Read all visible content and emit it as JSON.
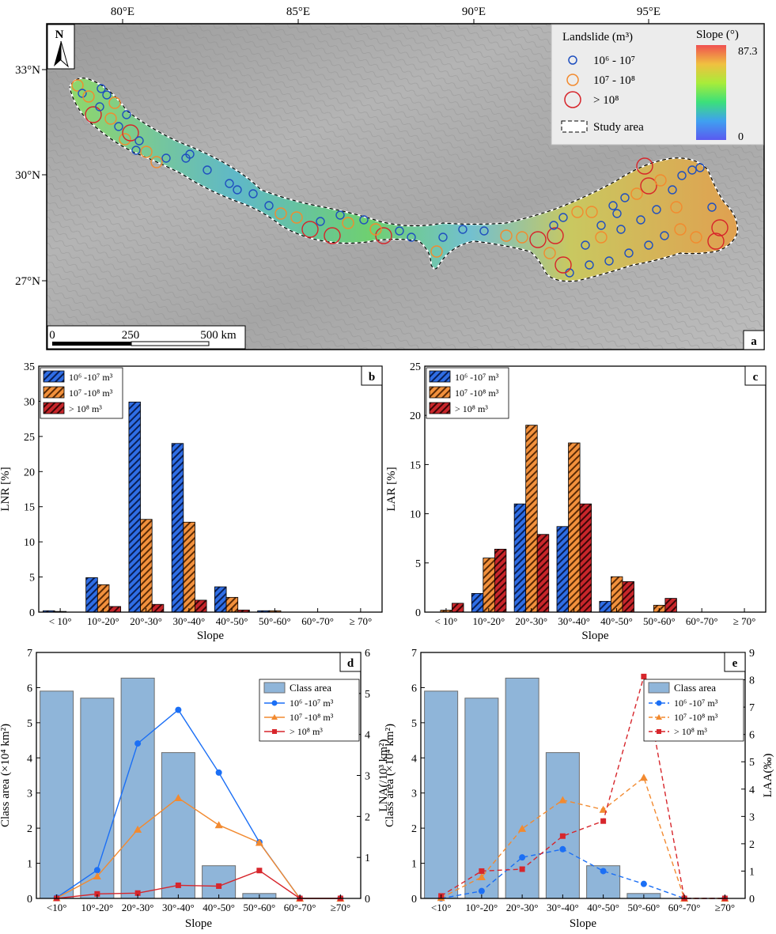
{
  "map": {
    "panel_letter": "a",
    "lon_ticks": [
      "80°E",
      "85°E",
      "90°E",
      "95°E"
    ],
    "lat_ticks": [
      "33°N",
      "30°N",
      "27°N"
    ],
    "north_label": "N",
    "scale_labels": [
      "0",
      "250",
      "500 km"
    ],
    "legend": {
      "landslide_title": "Landslide (m³)",
      "items": [
        "10⁶ - 10⁷",
        "10⁷ - 10⁸",
        "> 10⁸"
      ],
      "study_area": "Study area",
      "slope_title": "Slope (°)",
      "slope_max": "87.3",
      "slope_min": "0"
    },
    "colors": {
      "class1": "#1f4fbf",
      "class2": "#f28a2e",
      "class3": "#d7242a"
    }
  },
  "chart_data": [
    {
      "panel": "b",
      "type": "bar",
      "categories": [
        "< 10°",
        "10°-20°",
        "20°-30°",
        "30°-40°",
        "40°-50°",
        "50°-60°",
        "60°-70°",
        "≥ 70°"
      ],
      "series": [
        {
          "name": "10⁶ -10⁷ m³",
          "color": "#2f6ee6",
          "values": [
            0.2,
            4.9,
            29.9,
            24.0,
            3.6,
            0.2,
            0,
            0
          ]
        },
        {
          "name": "10⁷ -10⁸ m³",
          "color": "#f2913d",
          "values": [
            0.1,
            3.9,
            13.2,
            12.8,
            2.1,
            0.2,
            0,
            0
          ]
        },
        {
          "name": "> 10⁸ m³",
          "color": "#c8262b",
          "values": [
            0,
            0.8,
            1.1,
            1.7,
            0.3,
            0,
            0,
            0
          ]
        }
      ],
      "xlabel": "Slope",
      "ylabel": "LNR [%]",
      "ylim": [
        0,
        35
      ],
      "yticks": [
        "0",
        "5",
        "10",
        "15",
        "20",
        "25",
        "30",
        "35"
      ]
    },
    {
      "panel": "c",
      "type": "bar",
      "categories": [
        "< 10°",
        "10°-20°",
        "20°-30°",
        "30°-40°",
        "40°-50°",
        "50°-60°",
        "60°-70°",
        "≥ 70°"
      ],
      "series": [
        {
          "name": "10⁶ -10⁷ m³",
          "color": "#2f6ee6",
          "values": [
            0,
            1.9,
            11.0,
            8.7,
            1.1,
            0,
            0,
            0
          ]
        },
        {
          "name": "10⁷ -10⁸ m³",
          "color": "#f2913d",
          "values": [
            0.2,
            5.5,
            19.0,
            17.2,
            3.6,
            0.7,
            0,
            0
          ]
        },
        {
          "name": "> 10⁸ m³",
          "color": "#c8262b",
          "values": [
            0.9,
            6.4,
            7.9,
            11.0,
            3.1,
            1.4,
            0,
            0
          ]
        }
      ],
      "xlabel": "Slope",
      "ylabel": "LAR [%]",
      "ylim": [
        0,
        25
      ],
      "yticks": [
        "0",
        "5",
        "10",
        "15",
        "20",
        "25"
      ]
    },
    {
      "panel": "d",
      "type": "bar",
      "categories": [
        "<10°",
        "10°-20°",
        "20°-30°",
        "30°-40°",
        "40°-50°",
        "50°-60°",
        "60°-70°",
        "≥70°"
      ],
      "bars": {
        "name": "Class area",
        "color": "#8fb5d9",
        "values": [
          5.9,
          5.7,
          6.27,
          4.15,
          0.93,
          0.14,
          0,
          0
        ]
      },
      "series": [
        {
          "name": "10⁶ -10⁷ m³",
          "color": "#1b6ff5",
          "marker": "circle",
          "dashed": false,
          "values": [
            0.02,
            0.69,
            3.78,
            4.6,
            3.07,
            1.37,
            0,
            0
          ]
        },
        {
          "name": "10⁷ -10⁸ m³",
          "color": "#f28a30",
          "marker": "triangle",
          "dashed": false,
          "values": [
            0.01,
            0.54,
            1.68,
            2.45,
            1.79,
            1.36,
            0,
            0
          ]
        },
        {
          "name": "> 10⁸ m³",
          "color": "#d7262c",
          "marker": "square",
          "dashed": false,
          "values": [
            0,
            0.11,
            0.13,
            0.32,
            0.3,
            0.68,
            0,
            0
          ]
        }
      ],
      "xlabel": "Slope",
      "ylabel_left": "Class area (×10⁴ km²)",
      "ylabel_right": "LNA(/10³ km²)",
      "ylim_left": [
        0,
        7
      ],
      "ylim_right": [
        0,
        6
      ],
      "yticks_left": [
        "0",
        "1",
        "2",
        "3",
        "4",
        "5",
        "6",
        "7"
      ],
      "yticks_right": [
        "0",
        "1",
        "2",
        "3",
        "4",
        "5",
        "6"
      ]
    },
    {
      "panel": "e",
      "type": "bar",
      "categories": [
        "<10°",
        "10°-20°",
        "20°-30°",
        "30°-40°",
        "40°-50°",
        "50°-60°",
        "60°-70°",
        "≥70°"
      ],
      "bars": {
        "name": "Class area",
        "color": "#8fb5d9",
        "values": [
          5.9,
          5.7,
          6.27,
          4.15,
          0.93,
          0.14,
          0,
          0
        ]
      },
      "series": [
        {
          "name": "10⁶ -10⁷ m³",
          "color": "#1b6ff5",
          "marker": "circle",
          "dashed": true,
          "values": [
            0,
            0.27,
            1.5,
            1.8,
            1.0,
            0.53,
            0,
            0
          ]
        },
        {
          "name": "10⁷ -10⁸ m³",
          "color": "#f28a30",
          "marker": "triangle",
          "dashed": true,
          "values": [
            0.02,
            0.78,
            2.55,
            3.6,
            3.25,
            4.42,
            0,
            0
          ]
        },
        {
          "name": "> 10⁸ m³",
          "color": "#d7262c",
          "marker": "square",
          "dashed": true,
          "values": [
            0.09,
            1.0,
            1.07,
            2.28,
            2.83,
            8.12,
            0,
            0
          ]
        }
      ],
      "xlabel": "Slope",
      "ylabel_left": "Class area (×10⁴ km²)",
      "ylabel_right": "LAA(‰)",
      "ylim_left": [
        0,
        7
      ],
      "ylim_right": [
        0,
        9
      ],
      "yticks_left": [
        "0",
        "1",
        "2",
        "3",
        "4",
        "5",
        "6",
        "7"
      ],
      "yticks_right": [
        "0",
        "1",
        "2",
        "3",
        "4",
        "5",
        "6",
        "7",
        "8",
        "9"
      ]
    }
  ]
}
